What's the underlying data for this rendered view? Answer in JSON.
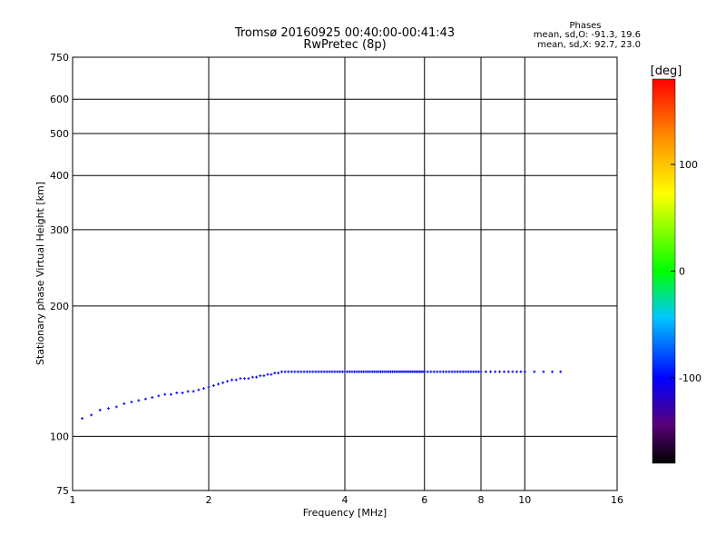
{
  "chart_data": {
    "type": "scatter",
    "title": "Tromsø 20160925 00:40:00-00:41:43",
    "subtitle": "RwPretec (8p)",
    "xlabel": "Frequency [MHz]",
    "ylabel": "Stationary phase Virtual Height [km]",
    "x_scale": "log",
    "y_scale": "log",
    "xlim": [
      1,
      16
    ],
    "ylim": [
      75,
      750
    ],
    "grid": true,
    "x_ticks": [
      1,
      2,
      4,
      6,
      8,
      10,
      16
    ],
    "y_ticks": [
      75,
      100,
      200,
      300,
      400,
      500,
      600,
      750
    ],
    "x_tick_labels": [
      "1",
      "2",
      "4",
      "6",
      "8",
      "10",
      "16"
    ],
    "y_tick_labels": [
      "75",
      "100",
      "200",
      "300",
      "400",
      "500",
      "600",
      "750"
    ],
    "stats": {
      "heading": "Phases",
      "line_o": "mean, sd,O: -91.3, 19.6",
      "line_x": "mean, sd,X:  92.7, 23.0"
    },
    "colorbar": {
      "title": "[deg]",
      "range": [
        -180,
        180
      ],
      "ticks": [
        -100,
        0,
        100
      ],
      "tick_labels": [
        "-100",
        "0",
        "100"
      ],
      "colormap": "rainbow"
    },
    "series": [
      {
        "phase": -100,
        "points": [
          [
            1.05,
            110
          ],
          [
            1.1,
            112
          ],
          [
            1.15,
            115
          ],
          [
            1.2,
            116
          ],
          [
            1.25,
            117
          ],
          [
            1.3,
            119
          ],
          [
            1.35,
            120
          ],
          [
            1.4,
            121
          ],
          [
            1.45,
            122
          ],
          [
            1.5,
            123
          ],
          [
            1.55,
            124
          ],
          [
            1.6,
            125
          ],
          [
            1.65,
            125
          ],
          [
            1.7,
            126
          ],
          [
            1.75,
            126
          ],
          [
            1.8,
            127
          ],
          [
            1.85,
            127
          ],
          [
            1.9,
            128
          ],
          [
            1.95,
            129
          ],
          [
            2.0,
            130
          ],
          [
            2.05,
            131
          ],
          [
            2.1,
            132
          ],
          [
            2.15,
            133
          ],
          [
            2.2,
            134
          ],
          [
            2.25,
            135
          ],
          [
            2.3,
            135
          ],
          [
            2.35,
            136
          ],
          [
            2.4,
            136
          ],
          [
            2.45,
            136
          ],
          [
            2.5,
            137
          ],
          [
            2.55,
            137
          ],
          [
            2.6,
            138
          ],
          [
            2.65,
            138
          ],
          [
            2.7,
            139
          ],
          [
            2.75,
            139
          ],
          [
            2.8,
            140
          ],
          [
            2.85,
            140
          ],
          [
            2.9,
            141
          ],
          [
            2.95,
            141
          ],
          [
            3.0,
            141
          ],
          [
            3.05,
            141
          ],
          [
            3.1,
            141
          ],
          [
            3.15,
            141
          ],
          [
            3.2,
            141
          ],
          [
            3.25,
            141
          ],
          [
            3.3,
            141
          ],
          [
            3.35,
            141
          ],
          [
            3.4,
            141
          ],
          [
            3.45,
            141
          ],
          [
            3.5,
            141
          ],
          [
            3.55,
            141
          ],
          [
            3.6,
            141
          ],
          [
            3.65,
            141
          ],
          [
            3.7,
            141
          ],
          [
            3.75,
            141
          ],
          [
            3.8,
            141
          ],
          [
            3.85,
            141
          ],
          [
            3.9,
            141
          ],
          [
            3.95,
            141
          ],
          [
            4.0,
            141
          ],
          [
            4.05,
            141
          ],
          [
            4.1,
            141
          ],
          [
            4.15,
            141
          ],
          [
            4.2,
            141
          ],
          [
            4.25,
            141
          ],
          [
            4.3,
            141
          ],
          [
            4.35,
            141
          ],
          [
            4.4,
            141
          ],
          [
            4.45,
            141
          ],
          [
            4.5,
            141
          ],
          [
            4.55,
            141
          ],
          [
            4.6,
            141
          ],
          [
            4.65,
            141
          ],
          [
            4.7,
            141
          ],
          [
            4.75,
            141
          ],
          [
            4.8,
            141
          ],
          [
            4.85,
            141
          ],
          [
            4.9,
            141
          ],
          [
            4.95,
            141
          ],
          [
            5.0,
            141
          ],
          [
            5.05,
            141
          ],
          [
            5.1,
            141
          ],
          [
            5.15,
            141
          ],
          [
            5.2,
            141
          ],
          [
            5.25,
            141
          ],
          [
            5.3,
            141
          ],
          [
            5.35,
            141
          ],
          [
            5.4,
            141
          ],
          [
            5.45,
            141
          ],
          [
            5.5,
            141
          ],
          [
            5.55,
            141
          ],
          [
            5.6,
            141
          ],
          [
            5.65,
            141
          ],
          [
            5.7,
            141
          ],
          [
            5.75,
            141
          ],
          [
            5.8,
            141
          ],
          [
            5.85,
            141
          ],
          [
            5.9,
            141
          ],
          [
            5.95,
            141
          ],
          [
            6.0,
            141
          ],
          [
            6.1,
            141
          ],
          [
            6.2,
            141
          ],
          [
            6.3,
            141
          ],
          [
            6.4,
            141
          ],
          [
            6.5,
            141
          ],
          [
            6.6,
            141
          ],
          [
            6.7,
            141
          ],
          [
            6.8,
            141
          ],
          [
            6.9,
            141
          ],
          [
            7.0,
            141
          ],
          [
            7.1,
            141
          ],
          [
            7.2,
            141
          ],
          [
            7.3,
            141
          ],
          [
            7.4,
            141
          ],
          [
            7.5,
            141
          ],
          [
            7.6,
            141
          ],
          [
            7.7,
            141
          ],
          [
            7.8,
            141
          ],
          [
            7.9,
            141
          ],
          [
            8.0,
            141
          ],
          [
            8.2,
            141
          ],
          [
            8.4,
            141
          ],
          [
            8.6,
            141
          ],
          [
            8.8,
            141
          ],
          [
            9.0,
            141
          ],
          [
            9.2,
            141
          ],
          [
            9.4,
            141
          ],
          [
            9.6,
            141
          ],
          [
            9.8,
            141
          ],
          [
            10.0,
            141
          ],
          [
            10.5,
            141
          ],
          [
            11.0,
            141
          ],
          [
            11.5,
            141
          ],
          [
            12.0,
            141
          ]
        ]
      }
    ]
  }
}
